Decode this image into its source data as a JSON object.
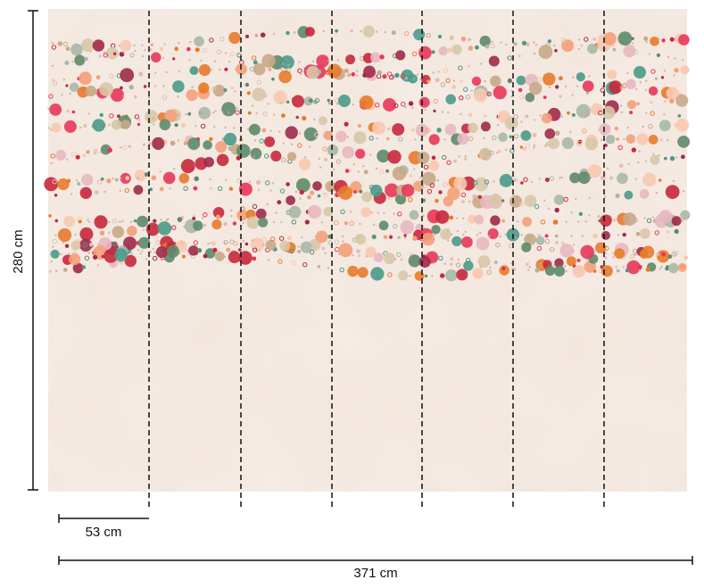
{
  "wallpaper": {
    "height_label": "280 cm",
    "panel_width_label": "53 cm",
    "total_width_label": "371 cm",
    "panel_count": 7,
    "background_color": "#f2e6dc",
    "seam_color": "#111111",
    "dot_colors": [
      "#e8375a",
      "#c8283c",
      "#e87a2a",
      "#f4a07a",
      "#5e8a6a",
      "#4a9a8a",
      "#a8b8a8",
      "#c8a888",
      "#a02a4a",
      "#f8c8b0",
      "#e8b8c0",
      "#d8c8a8"
    ]
  }
}
